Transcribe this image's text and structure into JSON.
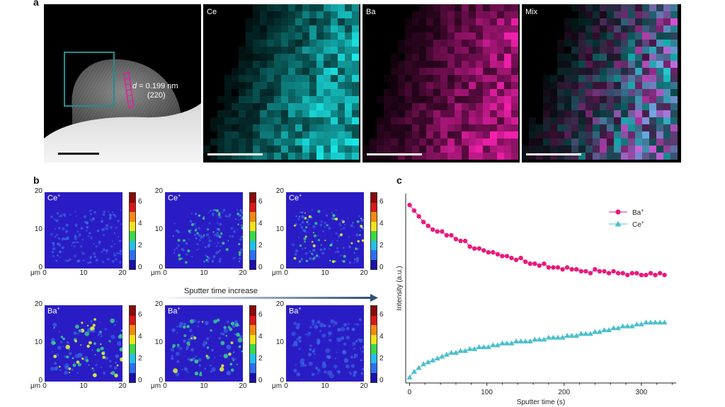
{
  "panels": {
    "a": {
      "letter": "a",
      "tem": {
        "annotation_d": "d",
        "annotation_value": " = 0.199 nm",
        "annotation_hkl": "(220)"
      },
      "maps": [
        {
          "label": "Ce",
          "color": "#19d6d6"
        },
        {
          "label": "Ba",
          "color": "#e01ea0"
        },
        {
          "label": "Mix",
          "color": "#a06ad8"
        }
      ]
    },
    "b": {
      "letter": "b",
      "axis_unit": "μm",
      "y_ticks": [
        "0",
        "10",
        "20"
      ],
      "x_ticks": [
        "0",
        "10",
        "20"
      ],
      "colorbar_ticks": [
        "0",
        "2",
        "4",
        "6"
      ],
      "arrow_label": "Sputter time increase",
      "rows": [
        {
          "label": "Ce",
          "sup": "+"
        },
        {
          "label": "Ba",
          "sup": "+"
        }
      ]
    },
    "c": {
      "letter": "c"
    }
  },
  "chart_data": {
    "type": "line",
    "title": "",
    "xlabel": "Sputter time (s)",
    "ylabel": "Intensity (a.u.)",
    "xlim": [
      -5,
      345
    ],
    "ylim": [
      0,
      1
    ],
    "xticks": [
      0,
      100,
      200,
      300
    ],
    "legend_position": "top-right",
    "series": [
      {
        "name": "Ba",
        "name_sup": "+",
        "color": "#e8197d",
        "marker": "circle",
        "x": [
          0,
          6,
          12,
          18,
          24,
          30,
          36,
          42,
          48,
          54,
          60,
          66,
          72,
          78,
          84,
          90,
          96,
          102,
          108,
          114,
          120,
          126,
          132,
          138,
          144,
          150,
          156,
          162,
          168,
          174,
          180,
          186,
          192,
          198,
          204,
          210,
          216,
          222,
          228,
          234,
          240,
          246,
          252,
          258,
          264,
          270,
          276,
          282,
          288,
          294,
          300,
          306,
          312,
          318,
          324,
          330
        ],
        "values": [
          0.94,
          0.91,
          0.88,
          0.85,
          0.83,
          0.81,
          0.8,
          0.8,
          0.78,
          0.78,
          0.76,
          0.75,
          0.75,
          0.72,
          0.71,
          0.71,
          0.7,
          0.69,
          0.69,
          0.68,
          0.67,
          0.67,
          0.66,
          0.65,
          0.66,
          0.64,
          0.63,
          0.63,
          0.62,
          0.63,
          0.61,
          0.61,
          0.61,
          0.6,
          0.61,
          0.6,
          0.6,
          0.59,
          0.59,
          0.58,
          0.6,
          0.59,
          0.59,
          0.58,
          0.59,
          0.58,
          0.58,
          0.57,
          0.58,
          0.58,
          0.57,
          0.57,
          0.58,
          0.57,
          0.58,
          0.57
        ]
      },
      {
        "name": "Ce",
        "name_sup": "+",
        "color": "#4bbfcc",
        "marker": "triangle",
        "x": [
          0,
          6,
          12,
          18,
          24,
          30,
          36,
          42,
          48,
          54,
          60,
          66,
          72,
          78,
          84,
          90,
          96,
          102,
          108,
          114,
          120,
          126,
          132,
          138,
          144,
          150,
          156,
          162,
          168,
          174,
          180,
          186,
          192,
          198,
          204,
          210,
          216,
          222,
          228,
          234,
          240,
          246,
          252,
          258,
          264,
          270,
          276,
          282,
          288,
          294,
          300,
          306,
          312,
          318,
          324,
          330
        ],
        "values": [
          0.03,
          0.06,
          0.08,
          0.1,
          0.11,
          0.12,
          0.13,
          0.14,
          0.15,
          0.16,
          0.16,
          0.17,
          0.17,
          0.18,
          0.18,
          0.19,
          0.19,
          0.19,
          0.2,
          0.2,
          0.21,
          0.21,
          0.21,
          0.22,
          0.22,
          0.22,
          0.22,
          0.23,
          0.23,
          0.23,
          0.24,
          0.24,
          0.24,
          0.24,
          0.25,
          0.25,
          0.25,
          0.26,
          0.26,
          0.26,
          0.27,
          0.27,
          0.28,
          0.28,
          0.29,
          0.29,
          0.3,
          0.3,
          0.3,
          0.31,
          0.31,
          0.32,
          0.32,
          0.32,
          0.32,
          0.32
        ]
      }
    ]
  }
}
